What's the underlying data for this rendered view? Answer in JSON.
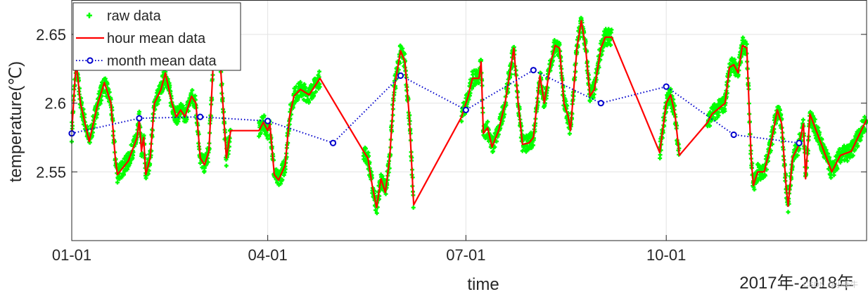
{
  "chart_data": {
    "type": "line",
    "xlabel": "time",
    "ylabel": "temperature(℃)",
    "date_range_label": "2017年-2018年",
    "ylim": [
      2.5,
      2.675
    ],
    "y_ticks": [
      "2.55",
      "2.6",
      "2.65"
    ],
    "y_tick_values": [
      2.55,
      2.6,
      2.65
    ],
    "x_ticks": [
      "01-01",
      "04-01",
      "07-01",
      "10-01"
    ],
    "x_tick_values": [
      "2017-01-01",
      "2017-04-01",
      "2017-07-01",
      "2017-10-01"
    ],
    "xlim": [
      "2017-01-01",
      "2018-01-01"
    ],
    "grid": true,
    "legend_position": "top-left",
    "legend": [
      {
        "label": "raw data",
        "color": "#00ff00",
        "style": "green plus markers"
      },
      {
        "label": "hour mean data",
        "color": "#ff0000",
        "style": "solid red line"
      },
      {
        "label": "month mean data",
        "color": "#0000cc",
        "style": "dotted blue line with circle markers"
      }
    ],
    "series": [
      {
        "name": "hour mean data",
        "color": "#ff0000",
        "points": [
          [
            "2017-01-01",
            2.578
          ],
          [
            "2017-01-02",
            2.605
          ],
          [
            "2017-01-03",
            2.63
          ],
          [
            "2017-01-05",
            2.6
          ],
          [
            "2017-01-09",
            2.572
          ],
          [
            "2017-01-13",
            2.6
          ],
          [
            "2017-01-16",
            2.615
          ],
          [
            "2017-01-19",
            2.6
          ],
          [
            "2017-01-21",
            2.56
          ],
          [
            "2017-01-22",
            2.548
          ],
          [
            "2017-01-27",
            2.558
          ],
          [
            "2017-01-31",
            2.575
          ],
          [
            "2017-02-01",
            2.588
          ],
          [
            "2017-02-02",
            2.565
          ],
          [
            "2017-02-03",
            2.575
          ],
          [
            "2017-02-04",
            2.548
          ],
          [
            "2017-02-06",
            2.56
          ],
          [
            "2017-02-08",
            2.6
          ],
          [
            "2017-02-11",
            2.61
          ],
          [
            "2017-02-13",
            2.622
          ],
          [
            "2017-02-16",
            2.6
          ],
          [
            "2017-02-18",
            2.59
          ],
          [
            "2017-02-20",
            2.595
          ],
          [
            "2017-02-22",
            2.59
          ],
          [
            "2017-02-25",
            2.605
          ],
          [
            "2017-02-27",
            2.6
          ],
          [
            "2017-03-01",
            2.56
          ],
          [
            "2017-03-03",
            2.555
          ],
          [
            "2017-03-05",
            2.565
          ],
          [
            "2017-03-07",
            2.63
          ],
          [
            "2017-03-09",
            2.66
          ],
          [
            "2017-03-11",
            2.61
          ],
          [
            "2017-03-13",
            2.56
          ],
          [
            "2017-03-15",
            2.58
          ],
          [
            "2017-03-28",
            2.58
          ],
          [
            "2017-03-30",
            2.586
          ],
          [
            "2017-04-01",
            2.58
          ],
          [
            "2017-04-02",
            2.585
          ],
          [
            "2017-04-04",
            2.548
          ],
          [
            "2017-04-06",
            2.544
          ],
          [
            "2017-04-09",
            2.555
          ],
          [
            "2017-04-11",
            2.59
          ],
          [
            "2017-04-13",
            2.605
          ],
          [
            "2017-04-16",
            2.61
          ],
          [
            "2017-04-20",
            2.606
          ],
          [
            "2017-04-25",
            2.618
          ],
          [
            "2017-05-15",
            2.565
          ],
          [
            "2017-05-17",
            2.56
          ],
          [
            "2017-05-19",
            2.54
          ],
          [
            "2017-05-21",
            2.524
          ],
          [
            "2017-05-23",
            2.545
          ],
          [
            "2017-05-25",
            2.535
          ],
          [
            "2017-05-27",
            2.56
          ],
          [
            "2017-05-29",
            2.61
          ],
          [
            "2017-06-01",
            2.638
          ],
          [
            "2017-06-03",
            2.63
          ],
          [
            "2017-06-05",
            2.59
          ],
          [
            "2017-06-07",
            2.526
          ],
          [
            "2017-06-29",
            2.59
          ],
          [
            "2017-07-02",
            2.605
          ],
          [
            "2017-07-04",
            2.618
          ],
          [
            "2017-07-07",
            2.618
          ],
          [
            "2017-07-08",
            2.63
          ],
          [
            "2017-07-09",
            2.578
          ],
          [
            "2017-07-11",
            2.582
          ],
          [
            "2017-07-13",
            2.568
          ],
          [
            "2017-07-16",
            2.58
          ],
          [
            "2017-07-19",
            2.6
          ],
          [
            "2017-07-21",
            2.62
          ],
          [
            "2017-07-23",
            2.64
          ],
          [
            "2017-07-25",
            2.6
          ],
          [
            "2017-07-27",
            2.57
          ],
          [
            "2017-07-30",
            2.571
          ],
          [
            "2017-08-01",
            2.575
          ],
          [
            "2017-08-04",
            2.62
          ],
          [
            "2017-08-06",
            2.6
          ],
          [
            "2017-08-09",
            2.63
          ],
          [
            "2017-08-11",
            2.642
          ],
          [
            "2017-08-13",
            2.64
          ],
          [
            "2017-08-15",
            2.6
          ],
          [
            "2017-08-17",
            2.59
          ],
          [
            "2017-08-18",
            2.58
          ],
          [
            "2017-08-19",
            2.6
          ],
          [
            "2017-08-21",
            2.64
          ],
          [
            "2017-08-23",
            2.66
          ],
          [
            "2017-08-25",
            2.64
          ],
          [
            "2017-08-27",
            2.605
          ],
          [
            "2017-08-29",
            2.61
          ],
          [
            "2017-09-01",
            2.64
          ],
          [
            "2017-09-03",
            2.648
          ],
          [
            "2017-09-06",
            2.648
          ],
          [
            "2017-09-28",
            2.564
          ],
          [
            "2017-10-01",
            2.6
          ],
          [
            "2017-10-03",
            2.606
          ],
          [
            "2017-10-05",
            2.592
          ],
          [
            "2017-10-07",
            2.562
          ],
          [
            "2017-10-20",
            2.586
          ],
          [
            "2017-10-22",
            2.592
          ],
          [
            "2017-10-28",
            2.6
          ],
          [
            "2017-10-30",
            2.626
          ],
          [
            "2017-11-01",
            2.628
          ],
          [
            "2017-11-03",
            2.622
          ],
          [
            "2017-11-05",
            2.642
          ],
          [
            "2017-11-07",
            2.64
          ],
          [
            "2017-11-09",
            2.56
          ],
          [
            "2017-11-10",
            2.54
          ],
          [
            "2017-11-12",
            2.55
          ],
          [
            "2017-11-15",
            2.55
          ],
          [
            "2017-11-18",
            2.57
          ],
          [
            "2017-11-21",
            2.595
          ],
          [
            "2017-11-23",
            2.585
          ],
          [
            "2017-11-25",
            2.54
          ],
          [
            "2017-11-26",
            2.525
          ],
          [
            "2017-11-28",
            2.56
          ],
          [
            "2017-12-01",
            2.57
          ],
          [
            "2017-12-03",
            2.585
          ],
          [
            "2017-12-04",
            2.545
          ],
          [
            "2017-12-06",
            2.592
          ],
          [
            "2017-12-16",
            2.55
          ],
          [
            "2017-12-20",
            2.562
          ],
          [
            "2017-12-25",
            2.565
          ],
          [
            "2017-12-28",
            2.575
          ],
          [
            "2018-01-01",
            2.588
          ]
        ]
      },
      {
        "name": "month mean data",
        "color": "#0000cc",
        "points": [
          [
            "2017-01-01",
            2.578
          ],
          [
            "2017-02-01",
            2.589
          ],
          [
            "2017-03-01",
            2.59
          ],
          [
            "2017-04-01",
            2.587
          ],
          [
            "2017-05-01",
            2.571
          ],
          [
            "2017-06-01",
            2.62
          ],
          [
            "2017-07-01",
            2.595
          ],
          [
            "2017-08-01",
            2.624
          ],
          [
            "2017-09-01",
            2.6
          ],
          [
            "2017-10-01",
            2.612
          ],
          [
            "2017-11-01",
            2.577
          ],
          [
            "2017-12-01",
            2.571
          ]
        ]
      }
    ],
    "raw_data_note": "dense green point cloud around the hourly series"
  },
  "watermark": "CSDN @小手牛"
}
